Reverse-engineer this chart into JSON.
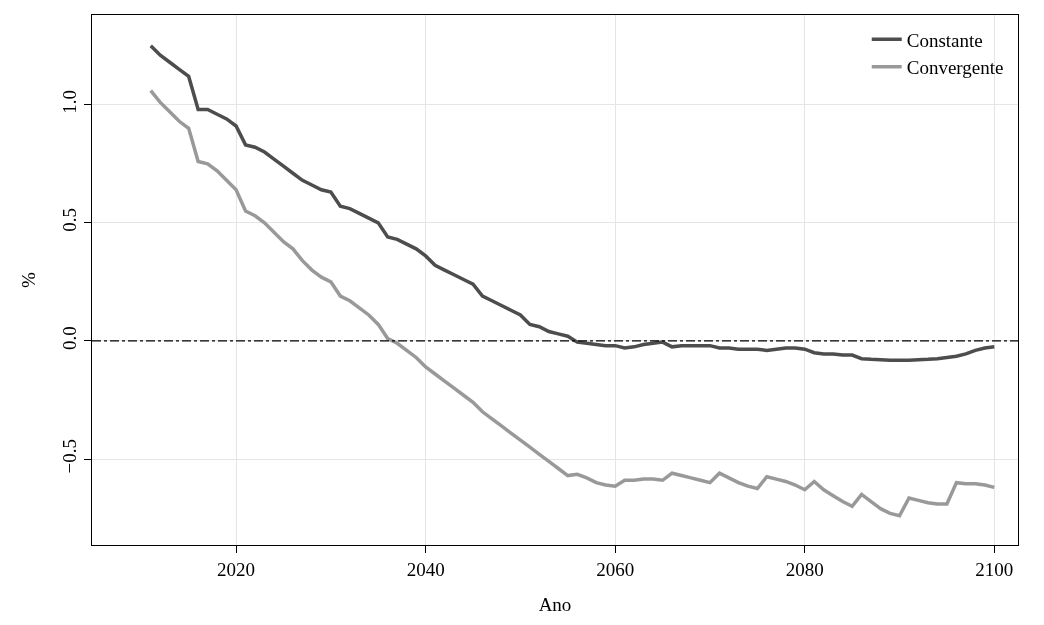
{
  "chart_data": {
    "type": "line",
    "xlabel": "Ano",
    "ylabel": "%",
    "x": [
      2011,
      2012,
      2013,
      2014,
      2015,
      2016,
      2017,
      2018,
      2019,
      2020,
      2021,
      2022,
      2023,
      2024,
      2025,
      2026,
      2027,
      2028,
      2029,
      2030,
      2031,
      2032,
      2033,
      2034,
      2035,
      2036,
      2037,
      2038,
      2039,
      2040,
      2041,
      2042,
      2043,
      2044,
      2045,
      2046,
      2047,
      2048,
      2049,
      2050,
      2051,
      2052,
      2053,
      2054,
      2055,
      2056,
      2057,
      2058,
      2059,
      2060,
      2061,
      2062,
      2063,
      2064,
      2065,
      2066,
      2067,
      2068,
      2069,
      2070,
      2071,
      2072,
      2073,
      2074,
      2075,
      2076,
      2077,
      2078,
      2079,
      2080,
      2081,
      2082,
      2083,
      2084,
      2085,
      2086,
      2087,
      2088,
      2089,
      2090,
      2091,
      2092,
      2093,
      2094,
      2095,
      2096,
      2097,
      2098,
      2099,
      2100
    ],
    "series": [
      {
        "name": "Constante",
        "color": "#4d4d4d",
        "values": [
          1.25,
          1.21,
          1.18,
          1.15,
          1.12,
          0.98,
          0.98,
          0.96,
          0.94,
          0.91,
          0.83,
          0.82,
          0.8,
          0.77,
          0.74,
          0.71,
          0.68,
          0.66,
          0.64,
          0.63,
          0.57,
          0.56,
          0.54,
          0.52,
          0.5,
          0.44,
          0.43,
          0.41,
          0.39,
          0.36,
          0.32,
          0.3,
          0.28,
          0.26,
          0.24,
          0.19,
          0.17,
          0.15,
          0.13,
          0.11,
          0.07,
          0.06,
          0.04,
          0.03,
          0.02,
          -0.005,
          -0.01,
          -0.015,
          -0.02,
          -0.02,
          -0.03,
          -0.025,
          -0.015,
          -0.01,
          -0.005,
          -0.025,
          -0.02,
          -0.02,
          -0.02,
          -0.02,
          -0.03,
          -0.03,
          -0.035,
          -0.035,
          -0.035,
          -0.04,
          -0.035,
          -0.03,
          -0.03,
          -0.035,
          -0.05,
          -0.055,
          -0.055,
          -0.06,
          -0.06,
          -0.075,
          -0.078,
          -0.08,
          -0.082,
          -0.082,
          -0.082,
          -0.08,
          -0.078,
          -0.075,
          -0.07,
          -0.065,
          -0.055,
          -0.04,
          -0.03,
          -0.025
        ]
      },
      {
        "name": "Convergente",
        "color": "#999999",
        "values": [
          1.06,
          1.01,
          0.97,
          0.93,
          0.9,
          0.76,
          0.75,
          0.72,
          0.68,
          0.64,
          0.55,
          0.53,
          0.5,
          0.46,
          0.42,
          0.39,
          0.34,
          0.3,
          0.27,
          0.25,
          0.19,
          0.17,
          0.14,
          0.11,
          0.07,
          0.01,
          -0.01,
          -0.04,
          -0.07,
          -0.11,
          -0.14,
          -0.17,
          -0.2,
          -0.23,
          -0.26,
          -0.3,
          -0.33,
          -0.36,
          -0.39,
          -0.42,
          -0.45,
          -0.48,
          -0.51,
          -0.54,
          -0.57,
          -0.565,
          -0.58,
          -0.6,
          -0.61,
          -0.615,
          -0.59,
          -0.59,
          -0.585,
          -0.585,
          -0.59,
          -0.56,
          -0.57,
          -0.58,
          -0.59,
          -0.6,
          -0.56,
          -0.58,
          -0.6,
          -0.615,
          -0.625,
          -0.575,
          -0.585,
          -0.595,
          -0.61,
          -0.63,
          -0.595,
          -0.63,
          -0.655,
          -0.68,
          -0.7,
          -0.65,
          -0.68,
          -0.71,
          -0.73,
          -0.74,
          -0.665,
          -0.675,
          -0.685,
          -0.69,
          -0.69,
          -0.6,
          -0.605,
          -0.605,
          -0.61,
          -0.62
        ]
      }
    ],
    "xlim": [
      2004.8,
      2102.5
    ],
    "xticks": [
      2020,
      2040,
      2060,
      2080,
      2100
    ],
    "ylim": [
      -0.864,
      1.38
    ],
    "yticks": [
      {
        "value": -0.5,
        "label": "−0.5"
      },
      {
        "value": 0,
        "label": "0.0"
      },
      {
        "value": 0.5,
        "label": "0.5"
      },
      {
        "value": 1,
        "label": "1.0"
      }
    ],
    "grid": true,
    "legend": "top right",
    "line_style": "solid",
    "marker": "none",
    "ref_lines": [
      {
        "axis": "y",
        "value": 0,
        "color": "#000000",
        "line_style": "dashdot"
      }
    ]
  }
}
